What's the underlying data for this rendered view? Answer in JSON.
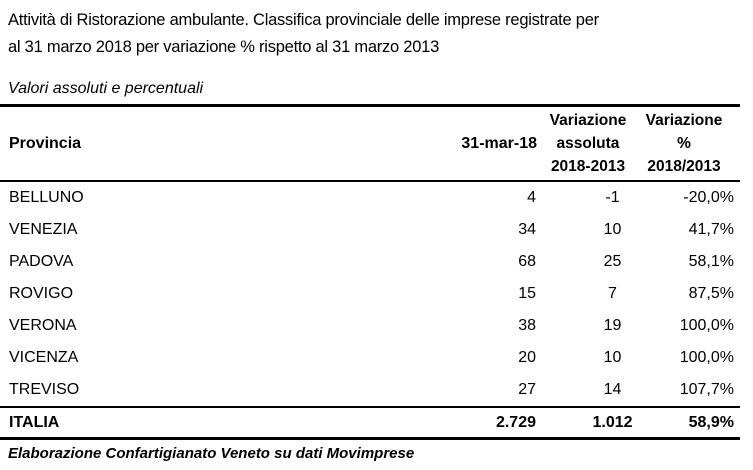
{
  "title": {
    "line1": "Attività di Ristorazione ambulante. Classifica provinciale delle imprese registrate per",
    "line2": "al 31 marzo 2018 per variazione % rispetto al 31 marzo 2013"
  },
  "subtitle": "Valori assoluti e percentuali",
  "table": {
    "headers": {
      "provincia": "Provincia",
      "date": "31-mar-18",
      "var_abs_line1": "Variazione",
      "var_abs_line2": "assoluta",
      "var_abs_line3": "2018-2013",
      "var_pct_line1": "Variazione",
      "var_pct_line2": "%",
      "var_pct_line3": "2018/2013"
    },
    "rows": [
      {
        "provincia": "BELLUNO",
        "value": "4",
        "var_abs": "-1",
        "var_pct": "-20,0%"
      },
      {
        "provincia": "VENEZIA",
        "value": "34",
        "var_abs": "10",
        "var_pct": "41,7%"
      },
      {
        "provincia": "PADOVA",
        "value": "68",
        "var_abs": "25",
        "var_pct": "58,1%"
      },
      {
        "provincia": "ROVIGO",
        "value": "15",
        "var_abs": "7",
        "var_pct": "87,5%"
      },
      {
        "provincia": "VERONA",
        "value": "38",
        "var_abs": "19",
        "var_pct": "100,0%"
      },
      {
        "provincia": "VICENZA",
        "value": "20",
        "var_abs": "10",
        "var_pct": "100,0%"
      },
      {
        "provincia": "TREVISO",
        "value": "27",
        "var_abs": "14",
        "var_pct": "107,7%"
      }
    ],
    "total": {
      "provincia": "ITALIA",
      "value": "2.729",
      "var_abs": "1.012",
      "var_pct": "58,9%"
    }
  },
  "source": "Elaborazione Confartigianato Veneto su dati Movimprese",
  "colors": {
    "text": "#000000",
    "rule": "#000000",
    "background": "#ffffff"
  }
}
